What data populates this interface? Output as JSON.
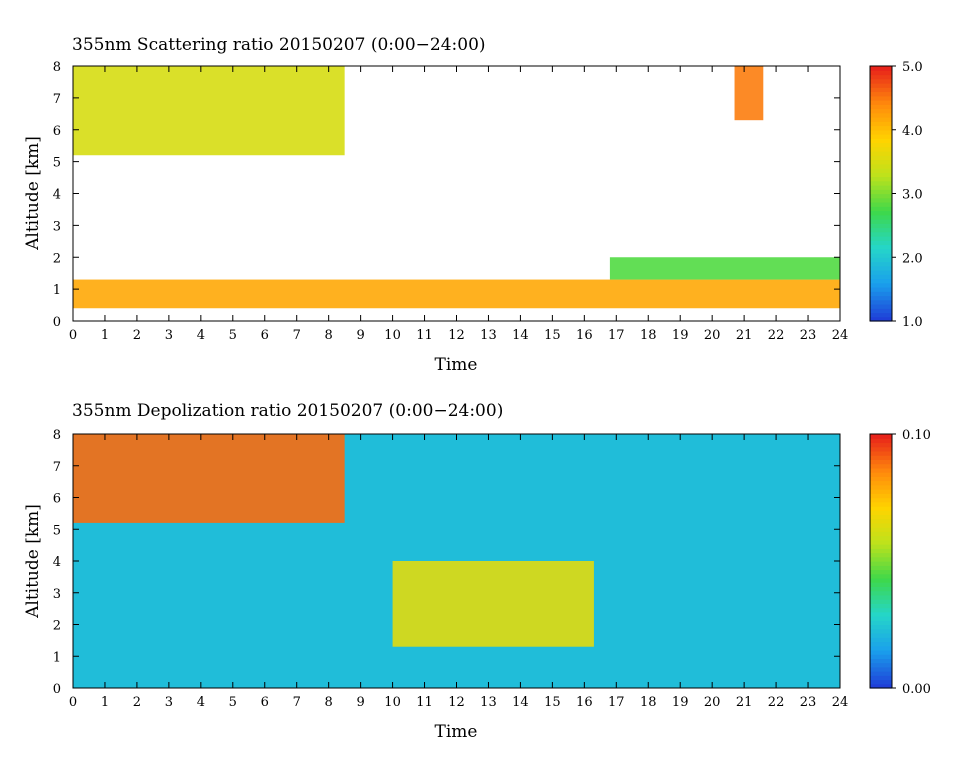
{
  "chart_data": [
    {
      "type": "heatmap",
      "title": "355nm Scattering ratio  20150207 (0:00−24:00)",
      "xlabel": "Time",
      "ylabel": "Altitude [km]",
      "xlim": [
        0,
        24
      ],
      "ylim": [
        0,
        8
      ],
      "x_ticks": [
        "0",
        "1",
        "2",
        "3",
        "4",
        "5",
        "6",
        "7",
        "8",
        "9",
        "10",
        "11",
        "12",
        "13",
        "14",
        "15",
        "16",
        "17",
        "18",
        "19",
        "20",
        "21",
        "22",
        "23",
        "24"
      ],
      "y_ticks": [
        "0",
        "1",
        "2",
        "3",
        "4",
        "5",
        "6",
        "7",
        "8"
      ],
      "colorbar": {
        "min": 1.0,
        "max": 5.0,
        "tick_labels": [
          "1.0",
          "2.0",
          "3.0",
          "4.0",
          "5.0"
        ],
        "tick_values": [
          1.0,
          2.0,
          3.0,
          4.0,
          5.0
        ],
        "colors": [
          "#1f3fd8",
          "#1aa0ec",
          "#25d6c8",
          "#3ed84a",
          "#bde21c",
          "#ffd400",
          "#ff8a0c",
          "#e8241a"
        ]
      },
      "grid": false,
      "features": [
        {
          "name": "boundary layer",
          "x_start": 0,
          "x_end": 24,
          "y_bottom": 0.4,
          "y_top": 1.3,
          "level": 4.2
        },
        {
          "name": "upper cloud",
          "x_start": 0,
          "x_end": 8.5,
          "y_bottom": 5.2,
          "y_top": 8.0,
          "level": 3.5
        },
        {
          "name": "cloud",
          "x_start": 20.7,
          "x_end": 21.6,
          "y_bottom": 6.3,
          "y_top": 8.0,
          "level": 4.5
        },
        {
          "name": "cloud",
          "x_start": 16.8,
          "x_end": 24,
          "y_bottom": 1.3,
          "y_top": 2.0,
          "level": 2.8
        }
      ]
    },
    {
      "type": "heatmap",
      "title": "355nm Depolization ratio  20150207 (0:00−24:00)",
      "xlabel": "Time",
      "ylabel": "Altitude [km]",
      "xlim": [
        0,
        24
      ],
      "ylim": [
        0,
        8
      ],
      "x_ticks": [
        "0",
        "1",
        "2",
        "3",
        "4",
        "5",
        "6",
        "7",
        "8",
        "9",
        "10",
        "11",
        "12",
        "13",
        "14",
        "15",
        "16",
        "17",
        "18",
        "19",
        "20",
        "21",
        "22",
        "23",
        "24"
      ],
      "y_ticks": [
        "0",
        "1",
        "2",
        "3",
        "4",
        "5",
        "6",
        "7",
        "8"
      ],
      "colorbar": {
        "min": 0.0,
        "max": 0.1,
        "tick_labels": [
          "0.00",
          "0.10"
        ],
        "tick_values": [
          0.0,
          0.1
        ],
        "colors": [
          "#1f3fd8",
          "#1aa0ec",
          "#25d6c8",
          "#3ed84a",
          "#bde21c",
          "#ffd400",
          "#ff8a0c",
          "#e8241a"
        ]
      },
      "grid": false,
      "features": [
        {
          "name": "depolarizing layer",
          "x_start": 10.0,
          "x_end": 16.3,
          "y_bottom": 1.3,
          "y_top": 4.0,
          "level": 0.065
        },
        {
          "name": "upper cloud",
          "x_start": 0,
          "x_end": 8.5,
          "y_bottom": 5.2,
          "y_top": 8.0,
          "level": 0.09
        }
      ]
    }
  ]
}
